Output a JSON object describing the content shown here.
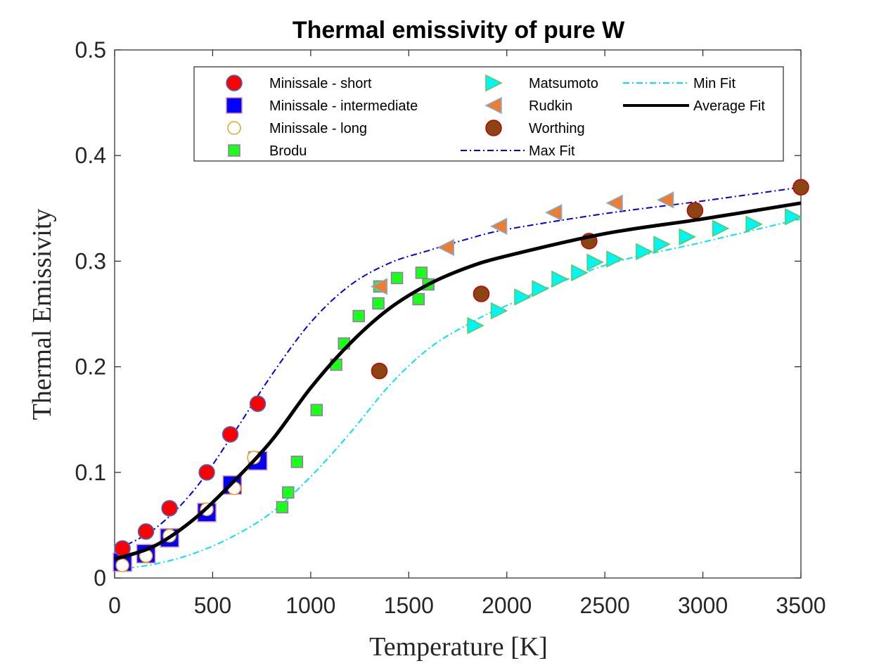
{
  "chart_data": {
    "type": "scatter",
    "title": "Thermal emissivity of pure W",
    "xlabel": "Temperature [K]",
    "ylabel": "Thermal Emissivity",
    "xlim": [
      0,
      3500
    ],
    "ylim": [
      0,
      0.5
    ],
    "x_ticks": [
      "0",
      "500",
      "1000",
      "1500",
      "2000",
      "2500",
      "3000",
      "3500"
    ],
    "y_ticks": [
      "0",
      "0.1",
      "0.2",
      "0.3",
      "0.4",
      "0.5"
    ],
    "grid": false,
    "legend_position": "top",
    "series": [
      {
        "name": "Minissale - short",
        "marker": "circle",
        "fill": "#ff0000",
        "stroke": "#3b6fd1",
        "points": [
          [
            40,
            0.028
          ],
          [
            160,
            0.044
          ],
          [
            280,
            0.066
          ],
          [
            470,
            0.1
          ],
          [
            590,
            0.136
          ],
          [
            730,
            0.165
          ]
        ]
      },
      {
        "name": "Minissale - intermediate",
        "marker": "square",
        "fill": "#0000ff",
        "stroke": "#d98fa0",
        "points": [
          [
            40,
            0.015
          ],
          [
            160,
            0.023
          ],
          [
            280,
            0.038
          ],
          [
            470,
            0.062
          ],
          [
            600,
            0.088
          ],
          [
            730,
            0.111
          ]
        ]
      },
      {
        "name": "Minissale - long",
        "marker": "circle",
        "fill": "#ffffff",
        "stroke": "#f0a020",
        "points": [
          [
            40,
            0.012
          ],
          [
            160,
            0.021
          ],
          [
            280,
            0.04
          ],
          [
            470,
            0.065
          ],
          [
            610,
            0.085
          ],
          [
            710,
            0.114
          ]
        ]
      },
      {
        "name": "Brodu",
        "marker": "square",
        "fill": "#1aff1a",
        "stroke": "#a070b0",
        "points": [
          [
            855,
            0.067
          ],
          [
            885,
            0.081
          ],
          [
            930,
            0.11
          ],
          [
            1030,
            0.159
          ],
          [
            1130,
            0.202
          ],
          [
            1170,
            0.222
          ],
          [
            1245,
            0.248
          ],
          [
            1345,
            0.26
          ],
          [
            1350,
            0.276
          ],
          [
            1440,
            0.284
          ],
          [
            1550,
            0.264
          ],
          [
            1565,
            0.289
          ],
          [
            1600,
            0.278
          ]
        ]
      },
      {
        "name": "Matsumoto",
        "marker": "triangle-right",
        "fill": "#00f5f5",
        "stroke": "#5cc85c",
        "points": [
          [
            1840,
            0.239
          ],
          [
            1960,
            0.253
          ],
          [
            2080,
            0.266
          ],
          [
            2170,
            0.274
          ],
          [
            2270,
            0.283
          ],
          [
            2370,
            0.289
          ],
          [
            2450,
            0.299
          ],
          [
            2550,
            0.302
          ],
          [
            2700,
            0.309
          ],
          [
            2790,
            0.316
          ],
          [
            2920,
            0.323
          ],
          [
            3090,
            0.331
          ],
          [
            3260,
            0.335
          ],
          [
            3460,
            0.342
          ]
        ]
      },
      {
        "name": "Rudkin",
        "marker": "triangle-left",
        "fill": "#ed7d31",
        "stroke": "#7fb0e0",
        "points": [
          [
            1350,
            0.276
          ],
          [
            1690,
            0.313
          ],
          [
            1960,
            0.333
          ],
          [
            2240,
            0.346
          ],
          [
            2550,
            0.355
          ],
          [
            2810,
            0.358
          ]
        ]
      },
      {
        "name": "Worthing",
        "marker": "circle",
        "fill": "#8b4513",
        "stroke": "#bf0000",
        "points": [
          [
            1350,
            0.196
          ],
          [
            1870,
            0.269
          ],
          [
            2420,
            0.319
          ],
          [
            2960,
            0.348
          ],
          [
            3500,
            0.37
          ]
        ]
      }
    ],
    "fits": [
      {
        "name": "Max Fit",
        "style": "dashdot",
        "color": "#0000e0",
        "width": 2,
        "points": [
          [
            0,
            0.026
          ],
          [
            200,
            0.046
          ],
          [
            400,
            0.082
          ],
          [
            600,
            0.135
          ],
          [
            800,
            0.192
          ],
          [
            1000,
            0.242
          ],
          [
            1200,
            0.277
          ],
          [
            1400,
            0.298
          ],
          [
            1600,
            0.31
          ],
          [
            1800,
            0.321
          ],
          [
            2000,
            0.33
          ],
          [
            2500,
            0.345
          ],
          [
            3000,
            0.357
          ],
          [
            3500,
            0.37
          ]
        ]
      },
      {
        "name": "Min Fit",
        "style": "dashdot",
        "color": "#00e0ff",
        "width": 2,
        "points": [
          [
            0,
            0.008
          ],
          [
            200,
            0.013
          ],
          [
            400,
            0.023
          ],
          [
            600,
            0.039
          ],
          [
            800,
            0.062
          ],
          [
            1000,
            0.096
          ],
          [
            1200,
            0.137
          ],
          [
            1400,
            0.182
          ],
          [
            1600,
            0.217
          ],
          [
            1800,
            0.24
          ],
          [
            2000,
            0.258
          ],
          [
            2500,
            0.296
          ],
          [
            3000,
            0.318
          ],
          [
            3500,
            0.34
          ]
        ]
      },
      {
        "name": "Average Fit",
        "style": "solid",
        "color": "#000000",
        "width": 5,
        "points": [
          [
            0,
            0.018
          ],
          [
            200,
            0.03
          ],
          [
            400,
            0.055
          ],
          [
            600,
            0.09
          ],
          [
            800,
            0.13
          ],
          [
            1000,
            0.18
          ],
          [
            1200,
            0.222
          ],
          [
            1400,
            0.255
          ],
          [
            1600,
            0.278
          ],
          [
            1800,
            0.294
          ],
          [
            2000,
            0.305
          ],
          [
            2500,
            0.326
          ],
          [
            3000,
            0.34
          ],
          [
            3500,
            0.355
          ]
        ]
      }
    ],
    "legend_order": [
      "Minissale - short",
      "Minissale - intermediate",
      "Minissale - long",
      "Brodu",
      "Matsumoto",
      "Rudkin",
      "Worthing",
      "Max Fit",
      "Min Fit",
      "Average Fit"
    ]
  }
}
